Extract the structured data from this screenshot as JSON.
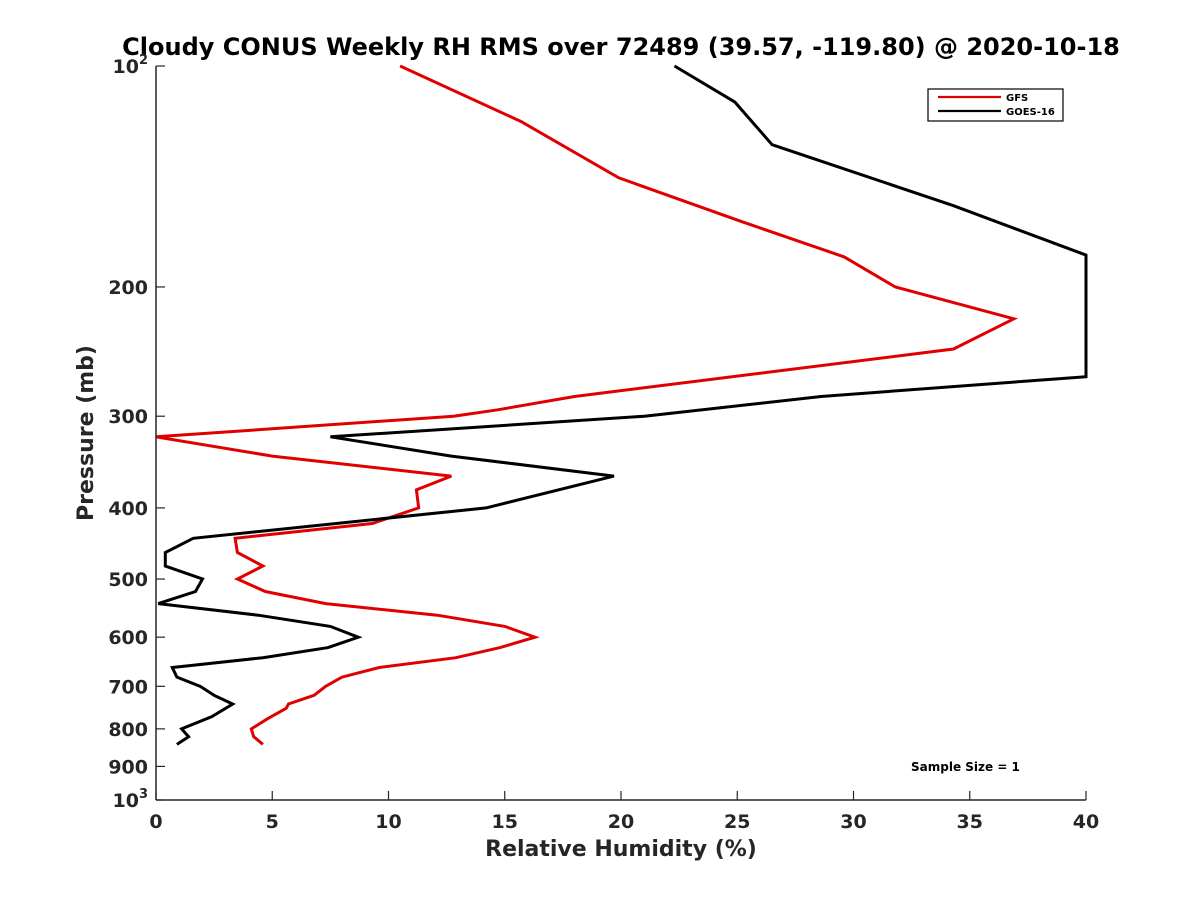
{
  "chart_data": {
    "type": "line",
    "title": "Cloudy CONUS Weekly RH RMS over 72489 (39.57, -119.80) @ 2020-10-18",
    "xlabel": "Relative Humidity (%)",
    "ylabel": "Pressure (mb)",
    "xlim": [
      0,
      40
    ],
    "ylim": [
      100,
      1000
    ],
    "y_scale": "log",
    "y_reversed": true,
    "x_ticks": [
      "0",
      "5",
      "10",
      "15",
      "20",
      "25",
      "30",
      "35",
      "40"
    ],
    "y_ticks": [
      {
        "value": 100,
        "base": "10",
        "exp": "2"
      },
      {
        "value": 200,
        "label": "200"
      },
      {
        "value": 300,
        "label": "300"
      },
      {
        "value": 400,
        "label": "400"
      },
      {
        "value": 500,
        "label": "500"
      },
      {
        "value": 600,
        "label": "600"
      },
      {
        "value": 700,
        "label": "700"
      },
      {
        "value": 800,
        "label": "800"
      },
      {
        "value": 900,
        "label": "900"
      },
      {
        "value": 1000,
        "base": "10",
        "exp": "3"
      }
    ],
    "grid": false,
    "legend_position": "top-right",
    "annotation": "Sample Size = 1",
    "series": [
      {
        "name": "GFS",
        "color": "#e00000",
        "points": [
          [
            10.5,
            100
          ],
          [
            15.7,
            119
          ],
          [
            19.9,
            142
          ],
          [
            25.2,
            163
          ],
          [
            29.6,
            182
          ],
          [
            31.8,
            200
          ],
          [
            36.9,
            221
          ],
          [
            34.3,
            243
          ],
          [
            18.0,
            282
          ],
          [
            14.7,
            294
          ],
          [
            12.8,
            300
          ],
          [
            0.0,
            320
          ],
          [
            5.0,
            340
          ],
          [
            12.7,
            362
          ],
          [
            11.2,
            378
          ],
          [
            11.3,
            400
          ],
          [
            9.3,
            420
          ],
          [
            3.4,
            440
          ],
          [
            3.5,
            460
          ],
          [
            4.6,
            480
          ],
          [
            3.5,
            500
          ],
          [
            4.7,
            520
          ],
          [
            7.3,
            540
          ],
          [
            12.1,
            560
          ],
          [
            15.0,
            580
          ],
          [
            16.3,
            600
          ],
          [
            14.8,
            620
          ],
          [
            12.9,
            640
          ],
          [
            9.6,
            660
          ],
          [
            8.0,
            680
          ],
          [
            7.3,
            700
          ],
          [
            6.8,
            720
          ],
          [
            5.7,
            740
          ],
          [
            5.6,
            750
          ],
          [
            4.8,
            775
          ],
          [
            4.1,
            800
          ],
          [
            4.2,
            820
          ],
          [
            4.6,
            840
          ]
        ]
      },
      {
        "name": "GOES-16",
        "color": "#000000",
        "points": [
          [
            22.3,
            100
          ],
          [
            24.9,
            112
          ],
          [
            26.5,
            128
          ],
          [
            34.3,
            155
          ],
          [
            40.0,
            181
          ],
          [
            40.0,
            265
          ],
          [
            28.6,
            282
          ],
          [
            21.0,
            300
          ],
          [
            7.5,
            320
          ],
          [
            12.7,
            340
          ],
          [
            19.7,
            362
          ],
          [
            14.2,
            400
          ],
          [
            1.6,
            440
          ],
          [
            0.4,
            460
          ],
          [
            0.4,
            480
          ],
          [
            2.0,
            500
          ],
          [
            1.7,
            520
          ],
          [
            0.1,
            540
          ],
          [
            4.4,
            560
          ],
          [
            7.5,
            580
          ],
          [
            8.7,
            600
          ],
          [
            7.4,
            620
          ],
          [
            4.6,
            640
          ],
          [
            0.7,
            660
          ],
          [
            0.9,
            680
          ],
          [
            1.9,
            700
          ],
          [
            2.5,
            720
          ],
          [
            3.3,
            740
          ],
          [
            2.4,
            770
          ],
          [
            1.1,
            800
          ],
          [
            1.4,
            820
          ],
          [
            0.9,
            840
          ]
        ]
      }
    ]
  }
}
